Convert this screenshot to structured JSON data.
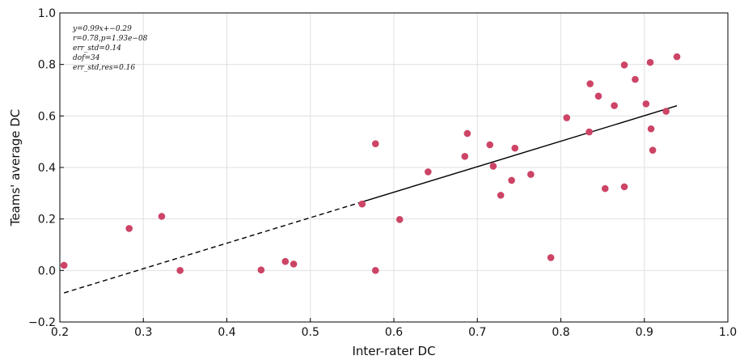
{
  "chart_data": {
    "type": "scatter",
    "xlabel": "Inter-rater DC",
    "ylabel": "Teams' average DC",
    "xlim": [
      0.2,
      1.0
    ],
    "ylim": [
      -0.2,
      1.0
    ],
    "x_ticks": [
      "0.2",
      "0.3",
      "0.4",
      "0.5",
      "0.6",
      "0.7",
      "0.8",
      "0.9",
      "1.0"
    ],
    "y_ticks": [
      "−0.2",
      "0.0",
      "0.2",
      "0.4",
      "0.6",
      "0.8",
      "1.0"
    ],
    "grid": true,
    "point_color": "#cc4466",
    "points": [
      {
        "x": 0.205,
        "y": 0.02
      },
      {
        "x": 0.283,
        "y": 0.163
      },
      {
        "x": 0.322,
        "y": 0.21
      },
      {
        "x": 0.344,
        "y": 0.0
      },
      {
        "x": 0.441,
        "y": 0.002
      },
      {
        "x": 0.47,
        "y": 0.035
      },
      {
        "x": 0.48,
        "y": 0.025
      },
      {
        "x": 0.562,
        "y": 0.258
      },
      {
        "x": 0.578,
        "y": 0.492
      },
      {
        "x": 0.578,
        "y": 0.0
      },
      {
        "x": 0.607,
        "y": 0.198
      },
      {
        "x": 0.641,
        "y": 0.383
      },
      {
        "x": 0.685,
        "y": 0.443
      },
      {
        "x": 0.688,
        "y": 0.532
      },
      {
        "x": 0.715,
        "y": 0.488
      },
      {
        "x": 0.719,
        "y": 0.405
      },
      {
        "x": 0.728,
        "y": 0.292
      },
      {
        "x": 0.741,
        "y": 0.35
      },
      {
        "x": 0.745,
        "y": 0.475
      },
      {
        "x": 0.764,
        "y": 0.373
      },
      {
        "x": 0.788,
        "y": 0.05
      },
      {
        "x": 0.807,
        "y": 0.593
      },
      {
        "x": 0.834,
        "y": 0.538
      },
      {
        "x": 0.835,
        "y": 0.725
      },
      {
        "x": 0.845,
        "y": 0.677
      },
      {
        "x": 0.853,
        "y": 0.318
      },
      {
        "x": 0.864,
        "y": 0.64
      },
      {
        "x": 0.876,
        "y": 0.798
      },
      {
        "x": 0.876,
        "y": 0.325
      },
      {
        "x": 0.889,
        "y": 0.742
      },
      {
        "x": 0.902,
        "y": 0.647
      },
      {
        "x": 0.907,
        "y": 0.808
      },
      {
        "x": 0.908,
        "y": 0.55
      },
      {
        "x": 0.91,
        "y": 0.467
      },
      {
        "x": 0.926,
        "y": 0.618
      },
      {
        "x": 0.939,
        "y": 0.83
      }
    ],
    "fit": {
      "slope": 0.99,
      "intercept": -0.29,
      "x_range": [
        0.205,
        0.939
      ],
      "color": "#000000"
    },
    "annotation": [
      "y=0.99x+−0.29",
      "r=0.78,p=1.93e−08",
      "err_std=0.14",
      "dof=34",
      "err_std,res=0.16"
    ]
  }
}
